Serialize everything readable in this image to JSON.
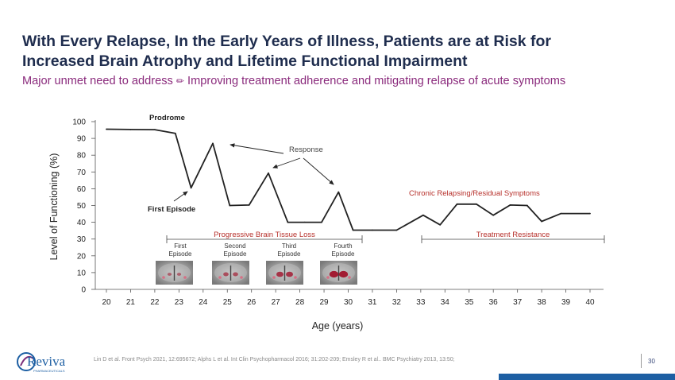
{
  "slide": {
    "title_line1": "With Every Relapse, In the Early Years of Illness, Patients are at Risk for",
    "title_line2": "Increased Brain Atrophy and Lifetime Functional Impairment",
    "subtitle_before": "Major unmet need to address",
    "subtitle_icon": "pencil-icon",
    "subtitle_after": "Improving treatment adherence and mitigating relapse of acute symptoms",
    "references": "Lin D et al. Front Psych 2021, 12:695672; Alphs L et al. Int Clin Psychopharmacol 2016; 31:202-209; Emsley R et al.. BMC Psychiatry 2013, 13:50;",
    "page_number": "30",
    "logo_text": "Reviva",
    "logo_subtext": "PHARMACEUTICALS"
  },
  "colors": {
    "title": "#1f2d4e",
    "subtitle": "#8a2a7c",
    "line": "#222222",
    "annotation_red": "#b7312c",
    "brand_blue": "#1d5fa3"
  },
  "chart_data": {
    "type": "line",
    "xlabel": "Age (years)",
    "ylabel": "Level of Functioning (%)",
    "xlim": [
      20,
      40
    ],
    "ylim": [
      0,
      100
    ],
    "xticks": [
      20,
      21,
      22,
      23,
      24,
      25,
      26,
      27,
      28,
      29,
      30,
      31,
      32,
      33,
      34,
      35,
      36,
      37,
      38,
      39,
      40
    ],
    "yticks": [
      0,
      10,
      20,
      30,
      40,
      50,
      60,
      70,
      80,
      90,
      100
    ],
    "grid": false,
    "series": [
      {
        "x": [
          20,
          21,
          22,
          22.85,
          23.5,
          24.4,
          25.1,
          25.9,
          26.7,
          27.5,
          28.2,
          28.9,
          29.6,
          30.2,
          31,
          32,
          33.1,
          33.8,
          34.5,
          35.3,
          36,
          36.7,
          37.4,
          38,
          38.8,
          40
        ],
        "values": [
          95.5,
          95.3,
          95.2,
          93,
          60.5,
          87,
          50,
          50.3,
          69.3,
          40,
          40,
          40,
          58,
          35.3,
          35.3,
          35.3,
          44.2,
          38.5,
          50.8,
          50.8,
          44.2,
          50.3,
          50,
          40.5,
          45.2,
          45.2
        ]
      }
    ],
    "annotations": [
      {
        "text": "Prodrome",
        "x": 22.6,
        "y": 101
      },
      {
        "text": "First Episode",
        "x": 22.8,
        "y": 47.5
      },
      {
        "text": "Response",
        "x": 28.3,
        "y": 82.5
      },
      {
        "text": "Chronic Relapsing/Residual Symptoms",
        "x": 35.5,
        "y": 56.5
      },
      {
        "text": "Progressive Brain Tissue Loss"
      },
      {
        "text": "Treatment Resistance"
      }
    ],
    "episodes": [
      {
        "line1": "First",
        "line2": "Episode"
      },
      {
        "line1": "Second",
        "line2": "Episode"
      },
      {
        "line1": "Third",
        "line2": "Episode"
      },
      {
        "line1": "Fourth",
        "line2": "Episode"
      }
    ],
    "brain_scan_atrophy_levels": [
      0.2,
      0.4,
      0.7,
      1.0
    ]
  }
}
